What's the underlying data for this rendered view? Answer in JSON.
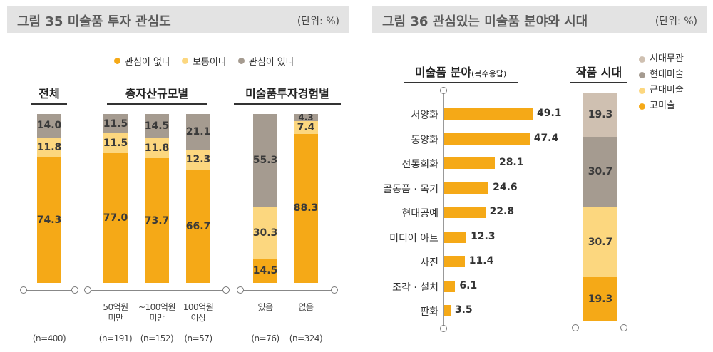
{
  "colors": {
    "no_interest": "#f5a917",
    "neutral": "#fcd77f",
    "interest": "#a59b90",
    "ancient": "#f5a917",
    "modern": "#fcd77f",
    "contemporary": "#a59b90",
    "timeless": "#cfc0b1"
  },
  "fig35": {
    "title": "그림 35  미술품 투자 관심도",
    "unit": "(단위: %)",
    "legend": [
      "관심이 없다",
      "보통이다",
      "관심이 있다"
    ],
    "groups": [
      "전체",
      "총자산규모별",
      "미술품투자경험별"
    ]
  },
  "fig36": {
    "title": "그림 36  관심있는 미술품 분야와 시대",
    "unit": "(단위: %)",
    "field_title": "미술품 분야",
    "field_title_suffix": "(복수응답)",
    "era_title": "작품 시대",
    "legend": [
      "시대무관",
      "현대미술",
      "근대미술",
      "고미술"
    ]
  },
  "chart_data": [
    {
      "type": "bar",
      "stacked": true,
      "title": "그림 35 미술품 투자 관심도",
      "unit": "(단위: %)",
      "categories": [
        "전체",
        "50억원 미만",
        "~100억원 미만",
        "100억원 이상",
        "있음",
        "없음"
      ],
      "category_lines": [
        [
          "전체"
        ],
        [
          "50억원",
          "미만"
        ],
        [
          "~100억원",
          "미만"
        ],
        [
          "100억원",
          "이상"
        ],
        [
          "있음"
        ],
        [
          "없음"
        ]
      ],
      "n_labels": [
        "(n=400)",
        "(n=191)",
        "(n=152)",
        "(n=57)",
        "(n=76)",
        "(n=324)"
      ],
      "series": [
        {
          "name": "관심이 없다",
          "values": [
            74.3,
            77.0,
            73.7,
            66.7,
            14.5,
            88.3
          ]
        },
        {
          "name": "보통이다",
          "values": [
            11.8,
            11.5,
            11.8,
            12.3,
            30.3,
            7.4
          ]
        },
        {
          "name": "관심이 있다",
          "values": [
            14.0,
            11.5,
            14.5,
            21.1,
            55.3,
            4.3
          ]
        }
      ],
      "labels": [
        [
          "74.3",
          "77.0",
          "73.7",
          "66.7",
          "14.5",
          "88.3"
        ],
        [
          "11.8",
          "11.5",
          "11.8",
          "12.3",
          "30.3",
          "7.4"
        ],
        [
          "14.0",
          "11.5",
          "14.5",
          "21.1",
          "55.3",
          "4.3"
        ]
      ],
      "ylim": [
        0,
        100
      ]
    },
    {
      "type": "bar",
      "orientation": "horizontal",
      "title": "미술품 분야(복수응답)",
      "categories": [
        "서양화",
        "동양화",
        "전통회화",
        "골동품 · 목기",
        "현대공예",
        "미디어 아트",
        "사진",
        "조각 · 설치",
        "판화"
      ],
      "values": [
        49.1,
        47.4,
        28.1,
        24.6,
        22.8,
        12.3,
        11.4,
        6.1,
        3.5
      ],
      "value_labels": [
        "49.1",
        "47.4",
        "28.1",
        "24.6",
        "22.8",
        "12.3",
        "11.4",
        "6.1",
        "3.5"
      ],
      "xlim": [
        0,
        50
      ]
    },
    {
      "type": "bar",
      "stacked": true,
      "title": "작품 시대",
      "categories": [
        "작품 시대"
      ],
      "series": [
        {
          "name": "고미술",
          "values": [
            19.3
          ]
        },
        {
          "name": "근대미술",
          "values": [
            30.7
          ]
        },
        {
          "name": "현대미술",
          "values": [
            30.7
          ]
        },
        {
          "name": "시대무관",
          "values": [
            19.3
          ]
        }
      ],
      "labels": [
        "19.3",
        "30.7",
        "30.7",
        "19.3"
      ],
      "ylim": [
        0,
        100
      ]
    }
  ]
}
